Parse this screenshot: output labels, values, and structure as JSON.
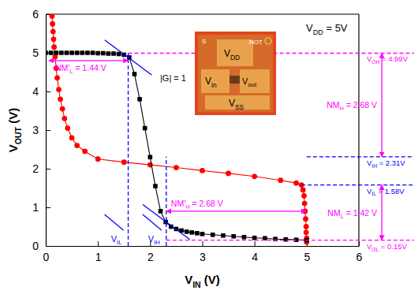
{
  "chart_data": {
    "type": "line",
    "x_label": {
      "parts": [
        "V",
        "IN",
        " (V)"
      ]
    },
    "y_label": {
      "parts": [
        "V",
        "OUT",
        " (V)"
      ]
    },
    "xlim": [
      0,
      6
    ],
    "ylim": [
      0,
      6
    ],
    "xticks": [
      0,
      1,
      2,
      3,
      4,
      5,
      6
    ],
    "yticks": [
      0,
      1,
      2,
      3,
      4,
      5,
      6
    ],
    "series": [
      {
        "color": "#ff0000",
        "marker": "circle",
        "line_style": "solid",
        "x": [
          0.12,
          0.13,
          0.14,
          0.15,
          0.16,
          0.18,
          0.2,
          0.22,
          0.25,
          0.28,
          0.32,
          0.36,
          0.42,
          0.5,
          0.6,
          0.75,
          1.0,
          1.5,
          2.0,
          2.5,
          3.0,
          3.5,
          4.0,
          4.5,
          4.8,
          4.9,
          4.93,
          4.95,
          4.96,
          4.97,
          4.98,
          4.99,
          4.99,
          5.0,
          5.0
        ],
        "values": [
          5.95,
          5.75,
          5.55,
          5.35,
          5.15,
          4.9,
          4.6,
          4.35,
          4.05,
          3.8,
          3.55,
          3.3,
          3.05,
          2.8,
          2.6,
          2.45,
          2.25,
          2.17,
          2.1,
          2.03,
          1.95,
          1.88,
          1.8,
          1.7,
          1.63,
          1.58,
          1.45,
          1.3,
          1.1,
          0.9,
          0.7,
          0.5,
          0.35,
          0.2,
          0.1
        ]
      },
      {
        "color": "#000000",
        "marker": "square",
        "line_style": "solid",
        "x": [
          0,
          0.1,
          0.2,
          0.3,
          0.4,
          0.5,
          0.6,
          0.7,
          0.8,
          0.9,
          1.0,
          1.1,
          1.2,
          1.3,
          1.4,
          1.5,
          1.6,
          1.7,
          1.8,
          1.9,
          2.0,
          2.1,
          2.2,
          2.3,
          2.4,
          2.5,
          2.6,
          2.7,
          2.8,
          2.9,
          3.0,
          3.2,
          3.4,
          3.6,
          3.8,
          4.0,
          4.2,
          4.4,
          4.6,
          4.8,
          5.0
        ],
        "values": [
          5,
          5,
          5,
          5,
          5,
          5,
          5,
          5,
          5,
          5,
          4.99,
          4.99,
          4.98,
          4.98,
          4.97,
          4.95,
          4.88,
          4.45,
          3.8,
          3.05,
          2.3,
          1.55,
          0.9,
          0.62,
          0.5,
          0.44,
          0.4,
          0.37,
          0.35,
          0.33,
          0.31,
          0.29,
          0.27,
          0.25,
          0.23,
          0.21,
          0.2,
          0.18,
          0.17,
          0.16,
          0.15
        ]
      }
    ],
    "annotations": {
      "texts": [
        {
          "parts": [
            "V",
            "DD",
            " = 5V"
          ]
        },
        {
          "parts": [
            "|G| = 1"
          ]
        }
      ],
      "hlines": [
        {
          "value": 4.99,
          "from": 1.58,
          "color": "#ff00ff",
          "label": {
            "parts": [
              "V",
              "OH",
              " = 4.99V"
            ]
          }
        },
        {
          "value": 2.31,
          "from": 5.0,
          "color": "#0000ff",
          "label": {
            "parts": [
              "V",
              "IH",
              " = 2.31V"
            ]
          }
        },
        {
          "value": 1.58,
          "from": 4.9,
          "color": "#0000ff",
          "label": {
            "parts": [
              "V",
              "IL",
              " = 1.58V"
            ]
          }
        },
        {
          "value": 0.15,
          "from": 2.31,
          "color": "#ff00ff",
          "label": {
            "parts": [
              "V",
              "OL",
              " = 0.15V"
            ]
          }
        }
      ],
      "vlines": [
        {
          "value": 1.58,
          "to": 4.99,
          "color": "#0000ff",
          "label": {
            "parts": [
              "V",
              "IL"
            ]
          }
        },
        {
          "value": 2.31,
          "to": 2.31,
          "color": "#0000ff",
          "label": {
            "parts": [
              "V",
              "IH"
            ]
          }
        }
      ],
      "tangents": [
        {
          "x": 1.58,
          "y": 4.88,
          "slope": -1
        },
        {
          "x": 2.31,
          "y": 0.62,
          "slope": -1
        }
      ],
      "arrows": [
        {
          "x": [
            0.06,
            1.58
          ],
          "y": [
            4.8,
            4.8
          ],
          "color": "#ff00ff",
          "label": {
            "parts": [
              "NM'",
              "L",
              " = 1.44 V"
            ]
          }
        },
        {
          "x": [
            2.31,
            4.99
          ],
          "y": [
            0.9,
            0.9
          ],
          "color": "#ff00ff",
          "label": {
            "parts": [
              "NM'",
              "H",
              " = 2.68 V"
            ]
          }
        },
        {
          "x": [
            6.44,
            6.44
          ],
          "y": [
            4.99,
            2.31
          ],
          "color": "#ff00ff",
          "label": {
            "parts": [
              "NM",
              "H",
              " = 2.68 V"
            ]
          }
        },
        {
          "x": [
            6.44,
            6.44
          ],
          "y": [
            1.58,
            0.15
          ],
          "color": "#ff00ff",
          "label": {
            "parts": [
              "NM",
              "L",
              " = 1.42 V"
            ]
          }
        }
      ]
    },
    "inset": {
      "labels": [
        {
          "parts": [
            "S"
          ]
        },
        {
          "parts": [
            "NOT"
          ]
        },
        {
          "parts": [
            "V",
            "DD"
          ]
        },
        {
          "parts": [
            "V",
            "in"
          ]
        },
        {
          "parts": [
            "V",
            "out"
          ]
        },
        {
          "parts": [
            "V",
            "SS"
          ]
        }
      ]
    }
  }
}
